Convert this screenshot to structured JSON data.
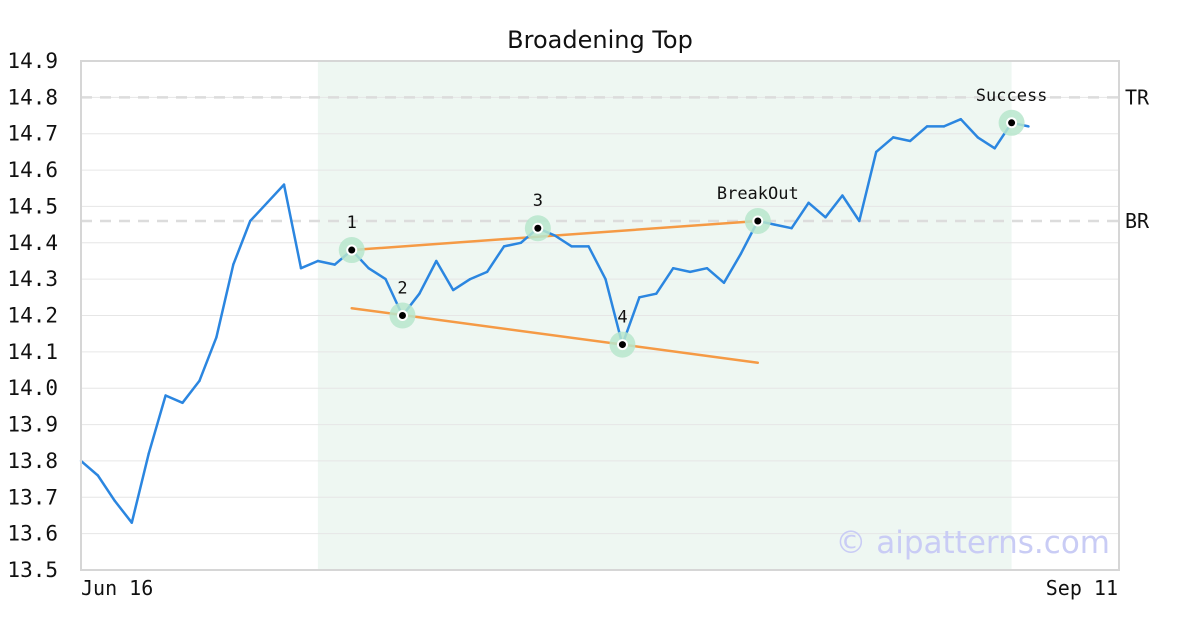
{
  "chart_data": {
    "type": "line",
    "title": "Broadening Top",
    "ylim": [
      13.5,
      14.9
    ],
    "yticks": [
      "14.9",
      "14.8",
      "14.7",
      "14.6",
      "14.5",
      "14.4",
      "14.3",
      "14.2",
      "14.1",
      "14.0",
      "13.9",
      "13.8",
      "13.7",
      "13.6",
      "13.5"
    ],
    "x_tick_labels": {
      "first": "Jun 16",
      "last": "Sep 11"
    },
    "grid": "horizontal",
    "series": [
      {
        "values": [
          13.8,
          13.76,
          13.69,
          13.63,
          13.82,
          13.98,
          13.96,
          14.02,
          14.14,
          14.34,
          14.46,
          14.51,
          14.56,
          14.33,
          14.35,
          14.34,
          14.38,
          14.33,
          14.3,
          14.2,
          14.26,
          14.35,
          14.27,
          14.3,
          14.32,
          14.39,
          14.4,
          14.44,
          14.42,
          14.39,
          14.39,
          14.3,
          14.12,
          14.25,
          14.26,
          14.33,
          14.32,
          14.33,
          14.29,
          14.37,
          14.46,
          14.45,
          14.44,
          14.51,
          14.47,
          14.53,
          14.46,
          14.65,
          14.69,
          14.68,
          14.72,
          14.72,
          14.74,
          14.69,
          14.66,
          14.73,
          14.72
        ],
        "color": "#2b86e0"
      }
    ],
    "pattern_region": {
      "start_index": 14,
      "end_index": 55,
      "color": "#eef7f2"
    },
    "levels": [
      {
        "label": "TR",
        "value": 14.8
      },
      {
        "label": "BR",
        "value": 14.46
      }
    ],
    "trendlines": [
      {
        "from": {
          "index": 16,
          "value": 14.38
        },
        "to": {
          "index": 40,
          "value": 14.46
        },
        "color": "#f59a45"
      },
      {
        "from": {
          "index": 16,
          "value": 14.22
        },
        "to": {
          "index": 40,
          "value": 14.07
        },
        "color": "#f59a45"
      }
    ],
    "points": [
      {
        "label": "1",
        "index": 16,
        "value": 14.38
      },
      {
        "label": "2",
        "index": 19,
        "value": 14.2
      },
      {
        "label": "3",
        "index": 27,
        "value": 14.44
      },
      {
        "label": "4",
        "index": 32,
        "value": 14.12
      },
      {
        "label": "BreakOut",
        "index": 40,
        "value": 14.46
      },
      {
        "label": "Success",
        "index": 55,
        "value": 14.73
      }
    ],
    "watermark": "© aipatterns.com"
  }
}
